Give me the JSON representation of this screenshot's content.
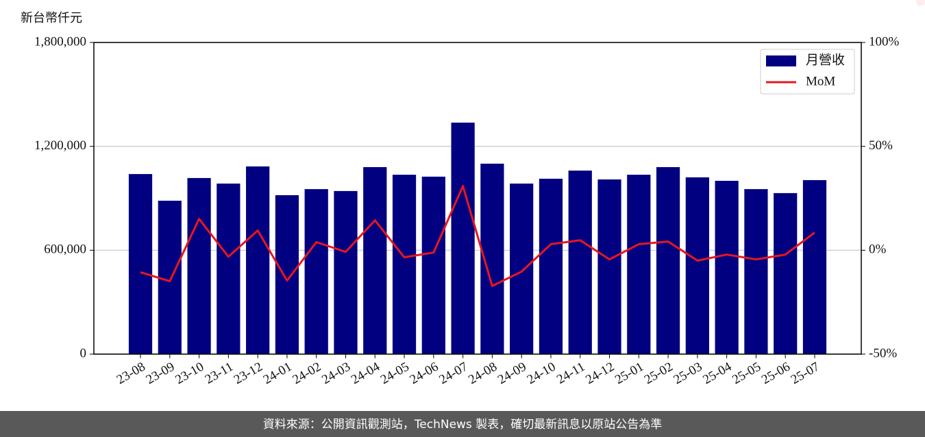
{
  "chart_data": {
    "type": "bar",
    "y_axis_label": "新台幣仟元",
    "watermark": "TechNews",
    "footer": "資料來源：公開資訊觀測站，TechNews 製表，確切最新訊息以原站公告為準",
    "categories": [
      "23-08",
      "23-09",
      "23-10",
      "23-11",
      "23-12",
      "24-01",
      "24-02",
      "24-03",
      "24-04",
      "24-05",
      "24-06",
      "24-07",
      "24-08",
      "24-09",
      "24-10",
      "24-11",
      "24-12",
      "25-01",
      "25-02",
      "25-03",
      "25-04",
      "25-05",
      "25-06",
      "25-07"
    ],
    "series": [
      {
        "name": "月營收",
        "type": "bar",
        "color": "#000080",
        "values": [
          1040000,
          886000,
          1017000,
          985000,
          1084000,
          918000,
          953000,
          942000,
          1080000,
          1036000,
          1025000,
          1337000,
          1100000,
          985000,
          1013000,
          1060000,
          1009000,
          1036000,
          1080000,
          1021000,
          1001000,
          953000,
          930000,
          1005000
        ]
      },
      {
        "name": "MoM",
        "type": "line",
        "axis": "y2",
        "color": "#e8161e",
        "values": [
          -10.6,
          -14.9,
          15.1,
          -3.1,
          9.5,
          -14.6,
          3.9,
          -0.8,
          14.4,
          -3.4,
          -1.1,
          30.9,
          -17.2,
          -10.3,
          2.9,
          4.8,
          -4.4,
          2.9,
          4.2,
          -5.0,
          -2.1,
          -4.4,
          -2.1,
          8.5
        ]
      }
    ],
    "ylim": [
      0,
      1800000
    ],
    "yticks": [
      0,
      {
        "value": 600000,
        "label": "600,000"
      },
      {
        "value": 1200000,
        "label": "1,200,000"
      },
      {
        "value": 1800000,
        "label": "1,800,000"
      }
    ],
    "y2lim": [
      -50,
      100
    ],
    "y2ticks": [
      {
        "value": -50,
        "label": "-50%"
      },
      {
        "value": 0,
        "label": "0%"
      },
      {
        "value": 50,
        "label": "50%"
      },
      {
        "value": 100,
        "label": "100%"
      }
    ],
    "grid": true,
    "legend": "upper right"
  }
}
